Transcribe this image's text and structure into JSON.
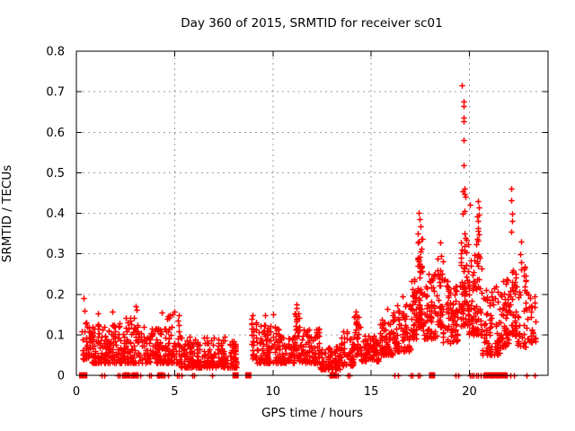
{
  "chart_data": {
    "type": "scatter",
    "title": "Day 360 of 2015, SRMTID for receiver sc01",
    "xlabel": "GPS time / hours",
    "ylabel": "SRMTID / TECUs",
    "xlim": [
      0,
      24
    ],
    "ylim": [
      0,
      0.8
    ],
    "xticks": [
      0,
      5,
      10,
      15,
      20
    ],
    "yticks": [
      0,
      0.1,
      0.2,
      0.3,
      0.4,
      0.5,
      0.6,
      0.7,
      0.8
    ],
    "xtick_labels": [
      "0",
      "5",
      "10",
      "15",
      "20"
    ],
    "ytick_labels": [
      "0",
      "0.1",
      "0.2",
      "0.3",
      "0.4",
      "0.5",
      "0.6",
      "0.7",
      "0.8"
    ],
    "grid": true,
    "grid_color": "#9e9e9e",
    "marker": "+",
    "marker_color": "#ff0000",
    "frame_color": "#000000",
    "bands_note": "dense scatter approximated as bands [x_start,x_end,y_min,y_max,n_points]",
    "bands": [
      [
        0.28,
        0.6,
        0.04,
        0.16,
        25
      ],
      [
        0.6,
        1.5,
        0.03,
        0.13,
        95
      ],
      [
        1.5,
        2.5,
        0.03,
        0.13,
        95
      ],
      [
        2.5,
        3.2,
        0.03,
        0.15,
        70
      ],
      [
        3.2,
        4.6,
        0.03,
        0.12,
        125
      ],
      [
        4.6,
        5.3,
        0.03,
        0.15,
        60
      ],
      [
        5.3,
        8.15,
        0.02,
        0.095,
        270
      ],
      [
        8.9,
        9.2,
        0.04,
        0.14,
        30
      ],
      [
        9.2,
        10.4,
        0.03,
        0.125,
        115
      ],
      [
        10.4,
        11.1,
        0.03,
        0.1,
        60
      ],
      [
        11.1,
        11.35,
        0.04,
        0.16,
        25
      ],
      [
        11.35,
        12.4,
        0.03,
        0.115,
        95
      ],
      [
        12.4,
        13.4,
        0.015,
        0.075,
        95
      ],
      [
        13.4,
        14.1,
        0.025,
        0.11,
        60
      ],
      [
        14.1,
        14.45,
        0.05,
        0.15,
        35
      ],
      [
        14.45,
        15.4,
        0.035,
        0.1,
        85
      ],
      [
        15.4,
        16.1,
        0.05,
        0.14,
        70
      ],
      [
        16.1,
        17.0,
        0.06,
        0.18,
        80
      ],
      [
        17.0,
        17.3,
        0.09,
        0.24,
        40
      ],
      [
        17.3,
        17.65,
        0.12,
        0.36,
        60
      ],
      [
        17.65,
        18.35,
        0.09,
        0.25,
        70
      ],
      [
        18.35,
        18.65,
        0.12,
        0.31,
        35
      ],
      [
        18.65,
        19.55,
        0.08,
        0.24,
        80
      ],
      [
        19.55,
        19.95,
        0.12,
        0.34,
        55
      ],
      [
        19.95,
        20.35,
        0.1,
        0.3,
        50
      ],
      [
        20.35,
        20.65,
        0.1,
        0.4,
        45
      ],
      [
        20.65,
        21.6,
        0.05,
        0.22,
        85
      ],
      [
        21.6,
        22.05,
        0.07,
        0.24,
        50
      ],
      [
        22.05,
        22.35,
        0.1,
        0.3,
        35
      ],
      [
        22.35,
        23.0,
        0.07,
        0.28,
        50
      ],
      [
        23.0,
        23.35,
        0.08,
        0.2,
        25
      ]
    ],
    "outliers": [
      [
        0.35,
        0.19
      ],
      [
        1.1,
        0.152
      ],
      [
        1.85,
        0.158
      ],
      [
        3.03,
        0.171
      ],
      [
        3.06,
        0.162
      ],
      [
        4.35,
        0.155
      ],
      [
        5.0,
        0.158
      ],
      [
        8.95,
        0.149
      ],
      [
        9.6,
        0.148
      ],
      [
        10.0,
        0.151
      ],
      [
        11.2,
        0.176
      ],
      [
        11.22,
        0.166
      ],
      [
        14.2,
        0.158
      ],
      [
        15.8,
        0.165
      ],
      [
        16.6,
        0.195
      ],
      [
        17.4,
        0.401
      ],
      [
        17.44,
        0.386
      ],
      [
        17.5,
        0.368
      ],
      [
        17.36,
        0.35
      ],
      [
        18.5,
        0.329
      ],
      [
        19.62,
        0.716
      ],
      [
        19.68,
        0.675
      ],
      [
        19.68,
        0.664
      ],
      [
        19.7,
        0.636
      ],
      [
        19.71,
        0.628
      ],
      [
        19.72,
        0.58
      ],
      [
        19.7,
        0.518
      ],
      [
        19.66,
        0.455
      ],
      [
        19.74,
        0.462
      ],
      [
        19.75,
        0.448
      ],
      [
        19.78,
        0.44
      ],
      [
        19.66,
        0.4
      ],
      [
        19.76,
        0.405
      ],
      [
        19.73,
        0.35
      ],
      [
        19.8,
        0.338
      ],
      [
        19.85,
        0.334
      ],
      [
        20.02,
        0.42
      ],
      [
        20.45,
        0.43
      ],
      [
        20.5,
        0.415
      ],
      [
        22.12,
        0.462
      ],
      [
        22.13,
        0.432
      ],
      [
        22.16,
        0.4
      ],
      [
        22.18,
        0.382
      ],
      [
        22.14,
        0.355
      ],
      [
        22.6,
        0.3
      ],
      [
        22.62,
        0.33
      ],
      [
        22.65,
        0.28
      ],
      [
        23.1,
        0.19
      ]
    ],
    "zero_marks": [
      1.3,
      1.42,
      2.1,
      2.2,
      2.35,
      2.45,
      2.7,
      2.8,
      2.9,
      3.1,
      3.25,
      3.7,
      3.8,
      4.1,
      4.2,
      4.5,
      4.65,
      5.1,
      5.2,
      5.35,
      5.9,
      6.0,
      6.9,
      12.9,
      13.0,
      13.2,
      13.3,
      13.8,
      13.9,
      16.2,
      16.35,
      17.0,
      17.1,
      17.35,
      17.45,
      19.3,
      19.45,
      20.0,
      20.1,
      20.2,
      20.35,
      20.45,
      20.55,
      20.7,
      21.1,
      21.45,
      21.9,
      22.1,
      22.25,
      22.9,
      23.3
    ],
    "zero_marks_bold": [
      0.3,
      0.4,
      2.55,
      3.0,
      4.3,
      8.1,
      8.75,
      13.05,
      18.1,
      20.9,
      21.0,
      21.2,
      21.3,
      21.6,
      21.7,
      21.75
    ]
  }
}
